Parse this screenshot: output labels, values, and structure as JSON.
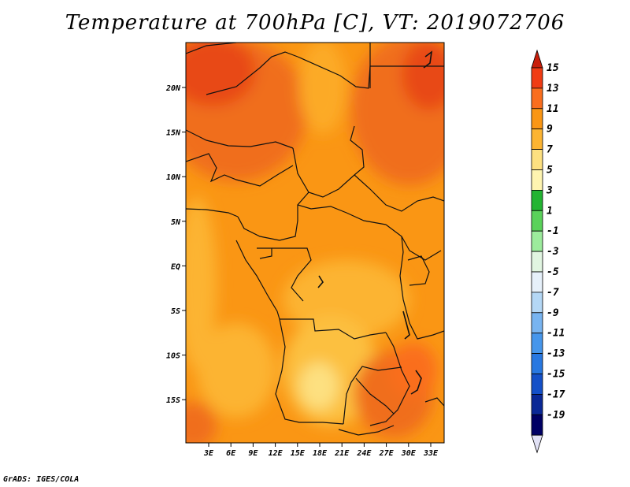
{
  "title": "Temperature at 700hPa [C], VT: 2019072706",
  "footer": "GrADS: IGES/COLA",
  "map": {
    "lon_labels": [
      "3E",
      "6E",
      "9E",
      "12E",
      "15E",
      "18E",
      "21E",
      "24E",
      "27E",
      "30E",
      "33E"
    ],
    "lat_labels": [
      "20N",
      "15N",
      "10N",
      "5N",
      "EQ",
      "5S",
      "10S",
      "15S"
    ]
  },
  "colorbar": {
    "labels": [
      "15",
      "13",
      "11",
      "9",
      "7",
      "5",
      "3",
      "1",
      "-1",
      "-3",
      "-5",
      "-7",
      "-9",
      "-11",
      "-13",
      "-15",
      "-17",
      "-19"
    ],
    "colors": [
      "#c81e0a",
      "#f03c14",
      "#fa6e1e",
      "#fa9614",
      "#fcb432",
      "#fde080",
      "#fef4b0",
      "#23b432",
      "#5ad25a",
      "#9ceb9c",
      "#e1f5e1",
      "#e6f0fa",
      "#b4d7f5",
      "#78b4f0",
      "#4696eb",
      "#2878e1",
      "#1450c8",
      "#0a2896",
      "#000064",
      "#e1e1f5"
    ]
  }
}
